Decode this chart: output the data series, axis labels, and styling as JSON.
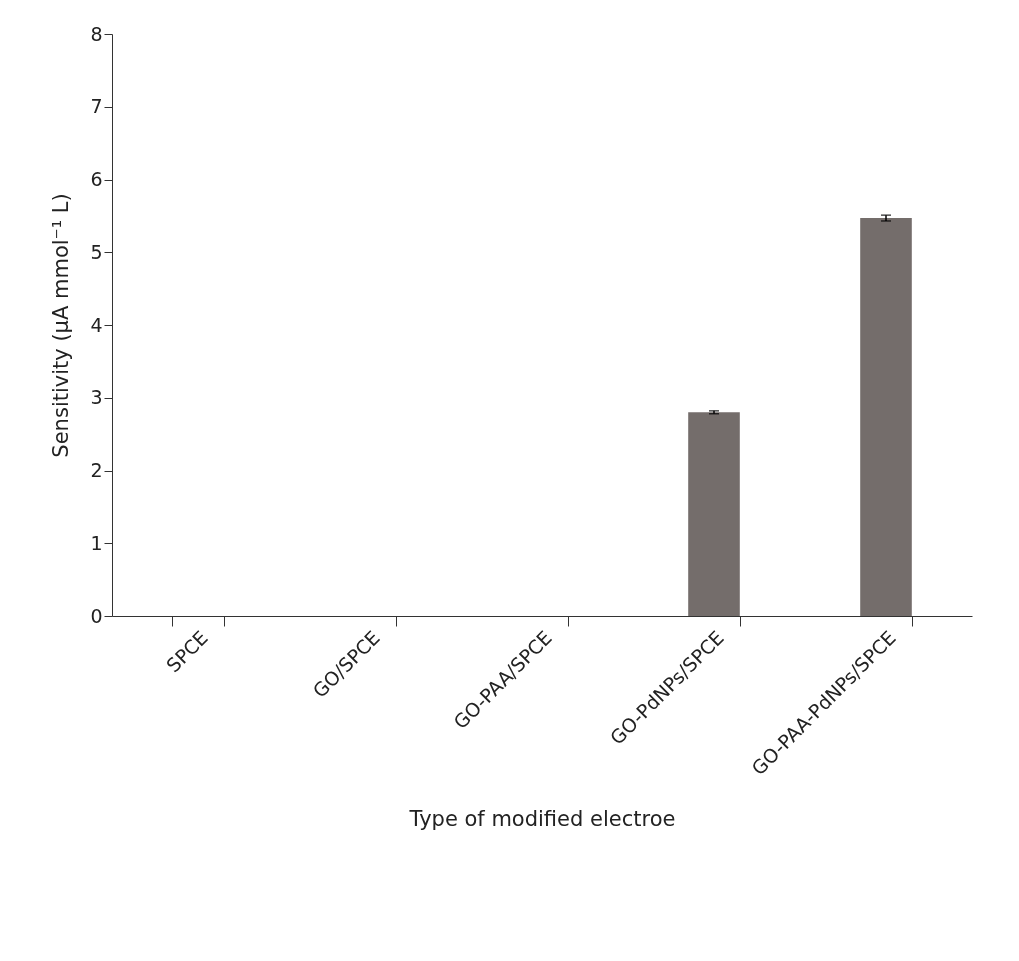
{
  "chart_data": {
    "type": "bar",
    "xlabel": "Type  of modified electroe",
    "ylabel": "Sensitivity (μA mmol⁻¹ L)",
    "categories": [
      "SPCE",
      "GO/SPCE",
      "GO-PAA/SPCE",
      "GO-PdNPs/SPCE",
      "GO-PAA-PdNPs/SPCE"
    ],
    "values": [
      0,
      0,
      0,
      2.8,
      5.47
    ],
    "errors": [
      null,
      null,
      null,
      0.02,
      0.04
    ],
    "color": "#746d6b",
    "ylim": [
      0,
      8
    ],
    "yticks": [
      0,
      1,
      2,
      3,
      4,
      5,
      6,
      7,
      8
    ],
    "grid": false
  }
}
